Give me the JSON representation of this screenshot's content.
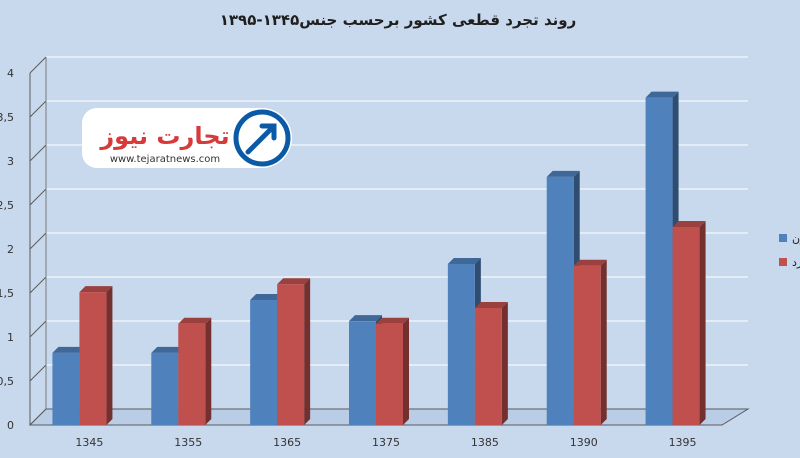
{
  "chart_data": {
    "type": "bar",
    "title": "روند تجرد قطعی کشور برحسب جنس۱۳۴۵-۱۳۹۵",
    "categories": [
      "1345",
      "1355",
      "1365",
      "1375",
      "1385",
      "1390",
      "1395"
    ],
    "series": [
      {
        "name": "زن",
        "color": "#4f81bd",
        "values": [
          0.82,
          0.82,
          1.42,
          1.18,
          1.83,
          2.82,
          3.72
        ]
      },
      {
        "name": "مرد",
        "color": "#c0504d",
        "values": [
          1.51,
          1.15,
          1.6,
          1.15,
          1.33,
          1.81,
          2.25
        ]
      }
    ],
    "yticks": [
      "0",
      "0,5",
      "1",
      "1,5",
      "2",
      "2,5",
      "3",
      "3,5",
      "4"
    ],
    "ylim": [
      0,
      4
    ],
    "grid": true,
    "legend_position": "right"
  },
  "logo": {
    "brand_text": "تجارت نیوز",
    "url_text": "www.tejaratnews.com",
    "ring_color": "#0b5aa6"
  }
}
